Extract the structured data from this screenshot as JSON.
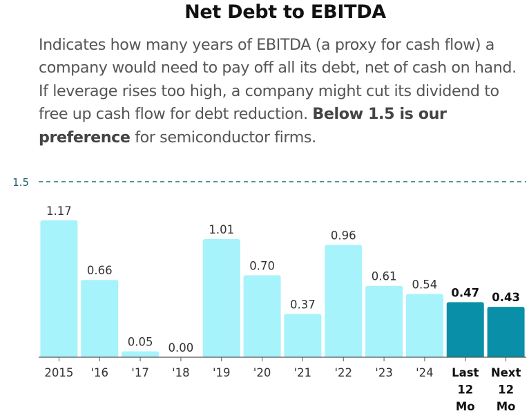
{
  "chart_data": {
    "type": "bar",
    "title": "Net Debt to EBITDA",
    "subtitle_parts": [
      "Indicates how many years of EBITDA (a proxy for cash flow) a company would need to pay off all its debt, net of cash on hand. If leverage rises too high, a company might cut its dividend to free up cash flow for debt reduction. ",
      "Below 1.5 is our preference",
      " for semiconductor firms."
    ],
    "categories": [
      "2015",
      "'16",
      "'17",
      "'18",
      "'19",
      "'20",
      "'21",
      "'22",
      "'23",
      "'24",
      "Last 12 Mo",
      "Next 12 Mo"
    ],
    "values": [
      1.17,
      0.66,
      0.05,
      0.0,
      1.01,
      0.7,
      0.37,
      0.96,
      0.61,
      0.54,
      0.47,
      0.43
    ],
    "value_labels": [
      "1.17",
      "0.66",
      "0.05",
      "0.00",
      "1.01",
      "0.70",
      "0.37",
      "0.96",
      "0.61",
      "0.54",
      "0.47",
      "0.43"
    ],
    "highlighted": [
      false,
      false,
      false,
      false,
      false,
      false,
      false,
      false,
      false,
      false,
      true,
      true
    ],
    "threshold": {
      "value": 1.5,
      "label": "1.5"
    },
    "ylim": [
      0,
      1.5
    ],
    "grid": false,
    "colors": {
      "bar": "#a7f3fb",
      "highlight": "#0a8fa8",
      "threshold": "#1f6b78",
      "axis": "#555555"
    }
  }
}
